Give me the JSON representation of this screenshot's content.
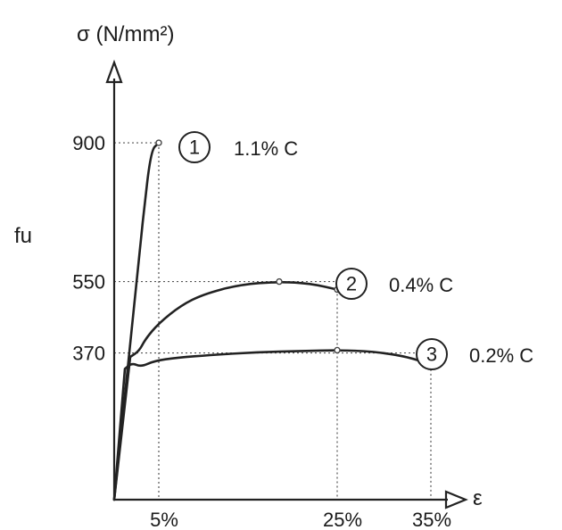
{
  "chart_data": {
    "type": "line",
    "xlabel": "ε",
    "ylabel": "σ (N/mm²)",
    "y_annotation": "fu",
    "x_ticks": [
      {
        "value": 5,
        "label": "5%"
      },
      {
        "value": 25,
        "label": "25%"
      },
      {
        "value": 35,
        "label": "35%"
      }
    ],
    "y_ticks": [
      {
        "value": 370,
        "label": "370"
      },
      {
        "value": 550,
        "label": "550"
      },
      {
        "value": 900,
        "label": "900"
      }
    ],
    "xlim": [
      0,
      38
    ],
    "ylim": [
      0,
      1050
    ],
    "series": [
      {
        "id": "1",
        "name": "1.1% C",
        "points": [
          [
            0,
            0
          ],
          [
            3.2,
            700
          ],
          [
            4.1,
            880
          ],
          [
            5,
            900
          ]
        ],
        "markers": [
          [
            5,
            900
          ]
        ]
      },
      {
        "id": "2",
        "name": "0.4% C",
        "points": [
          [
            0,
            0
          ],
          [
            1.8,
            360
          ],
          [
            2.8,
            375
          ],
          [
            3.5,
            405
          ],
          [
            5,
            445
          ],
          [
            7.5,
            490
          ],
          [
            10,
            518
          ],
          [
            14,
            542
          ],
          [
            18.5,
            550
          ],
          [
            22,
            545
          ],
          [
            25,
            530
          ]
        ],
        "markers": [
          [
            18.5,
            550
          ],
          [
            25,
            530
          ]
        ]
      },
      {
        "id": "3",
        "name": "0.2% C",
        "points": [
          [
            0,
            0
          ],
          [
            1.2,
            330
          ],
          [
            2,
            345
          ],
          [
            3,
            335
          ],
          [
            4.5,
            350
          ],
          [
            7,
            358
          ],
          [
            11,
            365
          ],
          [
            16,
            372
          ],
          [
            21,
            375
          ],
          [
            25,
            377
          ],
          [
            29,
            374
          ],
          [
            33,
            360
          ],
          [
            35.5,
            340
          ]
        ],
        "markers": [
          [
            25,
            377
          ],
          [
            35.5,
            340
          ]
        ]
      }
    ]
  }
}
